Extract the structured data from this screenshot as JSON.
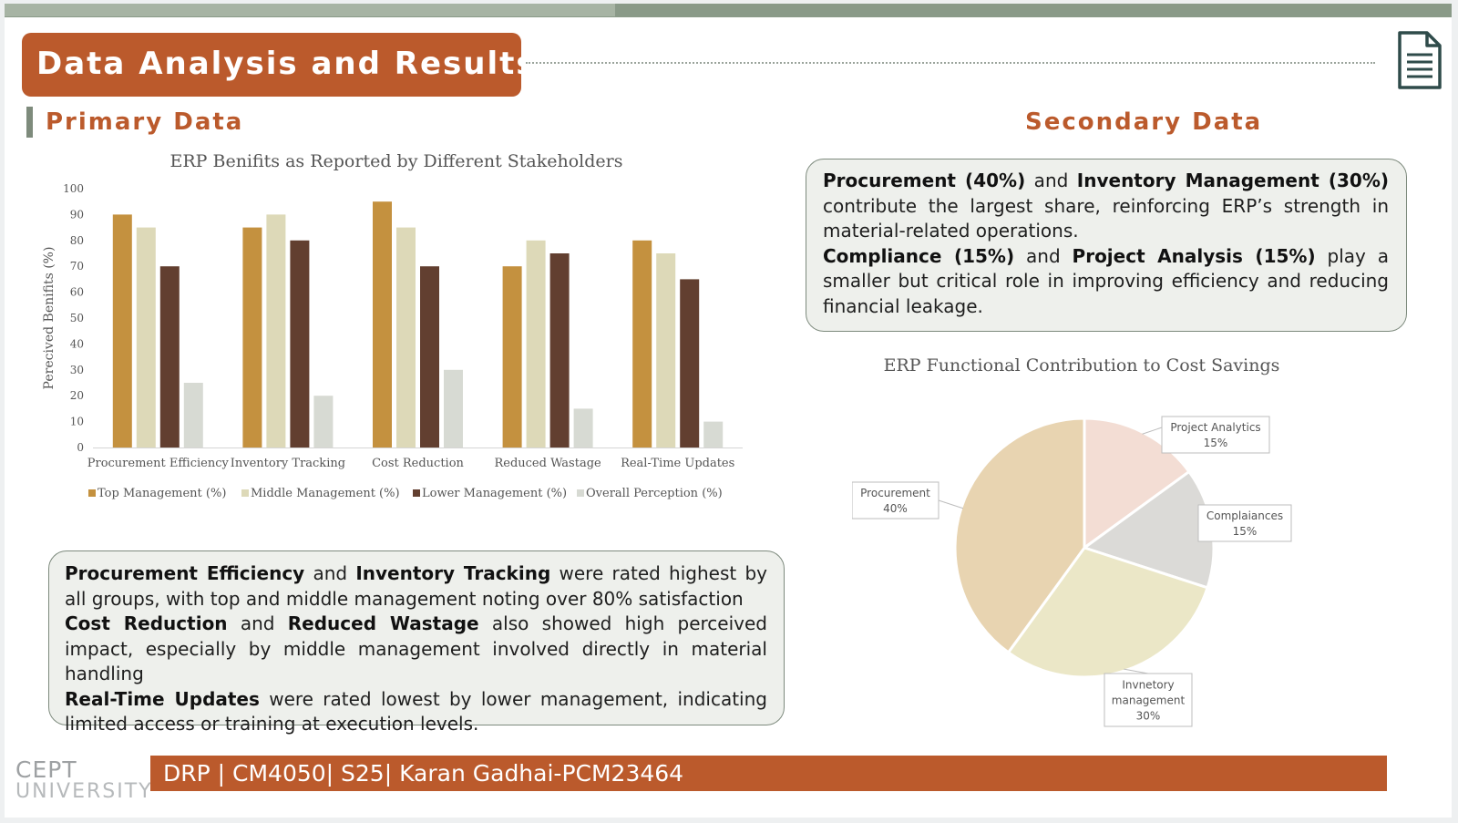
{
  "slide": {
    "title": "Data Analysis and Results",
    "primary_heading": "Primary Data",
    "secondary_heading": "Secondary Data",
    "footer": "DRP | CM4050| S25| Karan Gadhai-PCM23464",
    "logo_line1": "CEPT",
    "logo_line2": "UNIVERSITY",
    "icons": [
      "document-icon"
    ],
    "colors": {
      "accent": "#bb5a2c",
      "top_band": "#8a9a88"
    }
  },
  "primary_text": {
    "l1_b1": "Procurement Efficiency",
    "l1_t1": " and ",
    "l1_b2": "Inventory Tracking",
    "l1_t2": " were rated highest by all groups, with top and middle management noting over 80% satisfaction",
    "l2_b1": "Cost Reduction",
    "l2_t1": " and ",
    "l2_b2": "Reduced Wastage",
    "l2_t2": " also showed high perceived impact, especially by middle management involved directly in material handling",
    "l3_b1": "Real-Time Updates",
    "l3_t1": " were rated lowest by lower management, indicating limited access or training at execution levels."
  },
  "secondary_text": {
    "l1_b1": "Procurement (40%)",
    "l1_t1": " and ",
    "l1_b2": "Inventory Management (30%)",
    "l1_t2": " contribute the largest share, reinforcing ERP’s strength in material-related operations.",
    "l2_b1": "Compliance (15%)",
    "l2_t1": " and ",
    "l2_b2": "Project Analysis (15%)",
    "l2_t2": " play a smaller but critical role in improving efficiency and reducing financial leakage."
  },
  "chart_data": [
    {
      "type": "bar",
      "title": "ERP Benifits as Reported by Different Stakeholders",
      "ylabel": "Perecived Benifits (%)",
      "xlabel": "",
      "ylim": [
        0,
        100
      ],
      "yticks": [
        "0",
        "10",
        "20",
        "30",
        "40",
        "50",
        "60",
        "70",
        "80",
        "90",
        "100"
      ],
      "categories": [
        "Procurement Efficiency",
        "Inventory Tracking",
        "Cost Reduction",
        "Reduced Wastage",
        "Real-Time Updates"
      ],
      "series": [
        {
          "name": "Top Management (%)",
          "color": "#c4913f",
          "values": [
            90,
            85,
            95,
            70,
            80
          ]
        },
        {
          "name": "Middle Management (%)",
          "color": "#ddd9b8",
          "values": [
            85,
            90,
            85,
            80,
            75
          ]
        },
        {
          "name": "Lower Management (%)",
          "color": "#623f30",
          "values": [
            70,
            80,
            70,
            75,
            65
          ]
        },
        {
          "name": "Overall Perception (%)",
          "color": "#d7dad3",
          "values": [
            25,
            20,
            30,
            15,
            10
          ]
        }
      ],
      "legend": "bottom",
      "grid": false
    },
    {
      "type": "pie",
      "title": "ERP Functional Contribution to Cost Savings",
      "slices": [
        {
          "label": "Project Analytics",
          "value": 15,
          "pct": "15%",
          "color": "#f3ddd4"
        },
        {
          "label": "Complaiances",
          "value": 15,
          "pct": "15%",
          "color": "#dbdad7"
        },
        {
          "label": "Invnetory management",
          "value": 30,
          "pct": "30%",
          "color": "#ebe7c7"
        },
        {
          "label": "Procurement",
          "value": 40,
          "pct": "40%",
          "color": "#e8d4b1"
        }
      ]
    }
  ]
}
